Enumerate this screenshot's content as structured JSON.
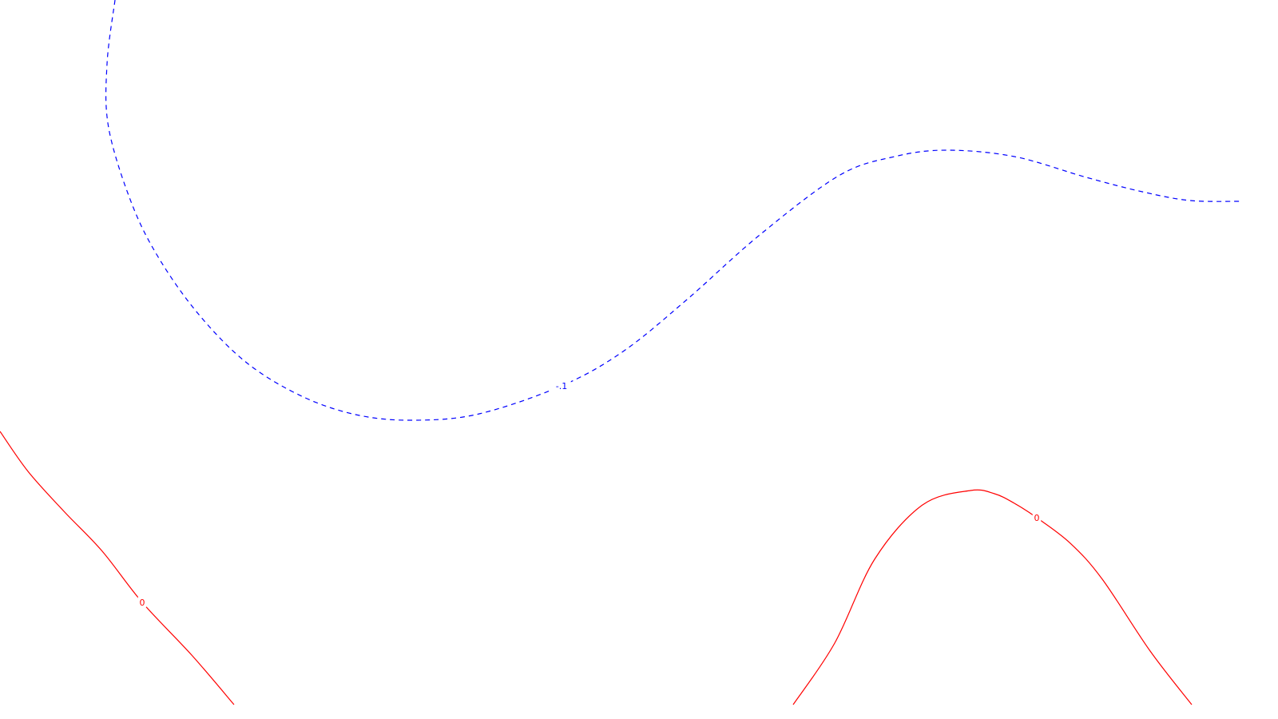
{
  "chart_data": {
    "type": "contour",
    "title": "",
    "xlabel": "",
    "ylabel": "",
    "grid": false,
    "legend": "none",
    "contours": [
      {
        "level_label": "-.1",
        "color": "#0000ff",
        "line_style": "dashed",
        "label_at_point": 11,
        "points": [
          [
            144,
            0
          ],
          [
            134,
            80
          ],
          [
            136,
            160
          ],
          [
            165,
            255
          ],
          [
            200,
            325
          ],
          [
            250,
            395
          ],
          [
            310,
            455
          ],
          [
            380,
            497
          ],
          [
            450,
            520
          ],
          [
            520,
            526
          ],
          [
            600,
            518
          ],
          [
            703,
            483
          ],
          [
            780,
            440
          ],
          [
            860,
            375
          ],
          [
            950,
            295
          ],
          [
            1050,
            220
          ],
          [
            1120,
            196
          ],
          [
            1185,
            188
          ],
          [
            1270,
            196
          ],
          [
            1360,
            222
          ],
          [
            1430,
            240
          ],
          [
            1490,
            251
          ],
          [
            1555,
            252
          ]
        ]
      },
      {
        "level_label": "0",
        "color": "#ff0000",
        "line_style": "solid",
        "label_at_point": 4,
        "points": [
          [
            0,
            540
          ],
          [
            35,
            590
          ],
          [
            80,
            640
          ],
          [
            128,
            690
          ],
          [
            178,
            754
          ],
          [
            240,
            820
          ],
          [
            293,
            882
          ]
        ]
      },
      {
        "level_label": "0",
        "color": "#ff0000",
        "line_style": "solid",
        "label_at_point": 7,
        "points": [
          [
            993,
            882
          ],
          [
            1045,
            805
          ],
          [
            1095,
            700
          ],
          [
            1155,
            632
          ],
          [
            1215,
            614
          ],
          [
            1245,
            618
          ],
          [
            1270,
            630
          ],
          [
            1298,
            648
          ],
          [
            1340,
            680
          ],
          [
            1380,
            725
          ],
          [
            1440,
            815
          ],
          [
            1492,
            882
          ]
        ]
      }
    ]
  }
}
